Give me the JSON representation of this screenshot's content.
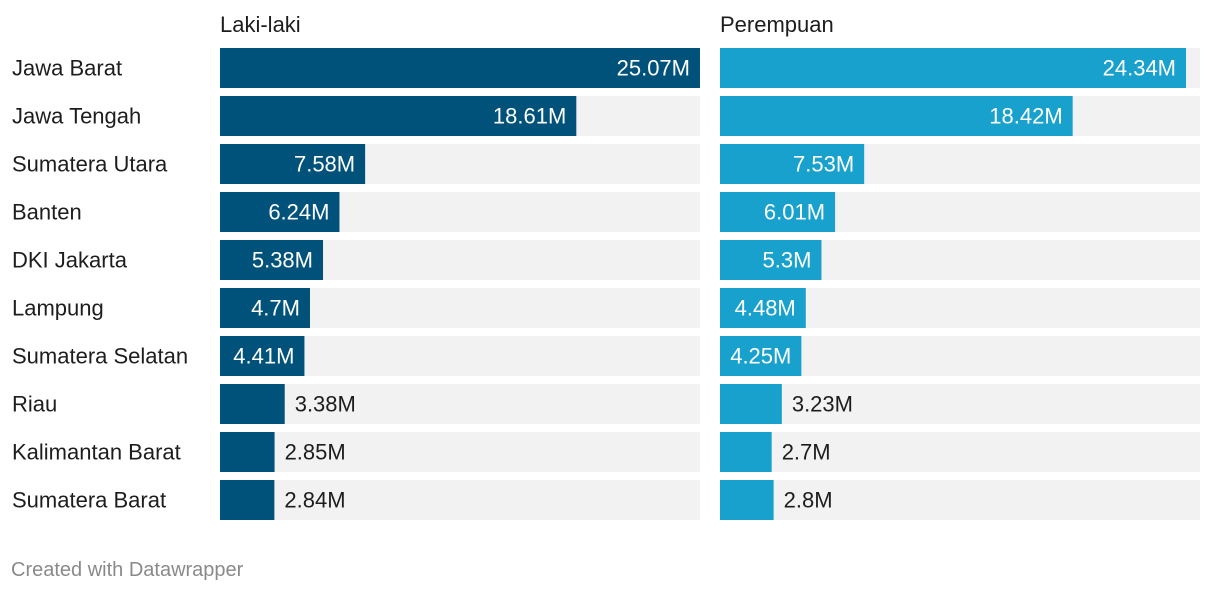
{
  "chart_data": {
    "type": "bar",
    "orientation": "horizontal",
    "categories": [
      "Jawa Barat",
      "Jawa Tengah",
      "Sumatera Utara",
      "Banten",
      "DKI Jakarta",
      "Lampung",
      "Sumatera Selatan",
      "Riau",
      "Kalimantan Barat",
      "Sumatera Barat"
    ],
    "series": [
      {
        "name": "Laki-laki",
        "color": "#00527a",
        "values": [
          25.07,
          18.61,
          7.58,
          6.24,
          5.38,
          4.7,
          4.41,
          3.38,
          2.85,
          2.84
        ],
        "labels": [
          "25.07M",
          "18.61M",
          "7.58M",
          "6.24M",
          "5.38M",
          "4.7M",
          "4.41M",
          "3.38M",
          "2.85M",
          "2.84M"
        ]
      },
      {
        "name": "Perempuan",
        "color": "#18a1cd",
        "values": [
          24.34,
          18.42,
          7.53,
          6.01,
          5.3,
          4.48,
          4.25,
          3.23,
          2.7,
          2.8
        ],
        "labels": [
          "24.34M",
          "18.42M",
          "7.53M",
          "6.01M",
          "5.3M",
          "4.48M",
          "4.25M",
          "3.23M",
          "2.7M",
          "2.8M"
        ]
      }
    ],
    "xlim": [
      0,
      25.07
    ],
    "background_bar_color": "#f2f2f2"
  },
  "footer": {
    "credit": "Created with Datawrapper"
  }
}
